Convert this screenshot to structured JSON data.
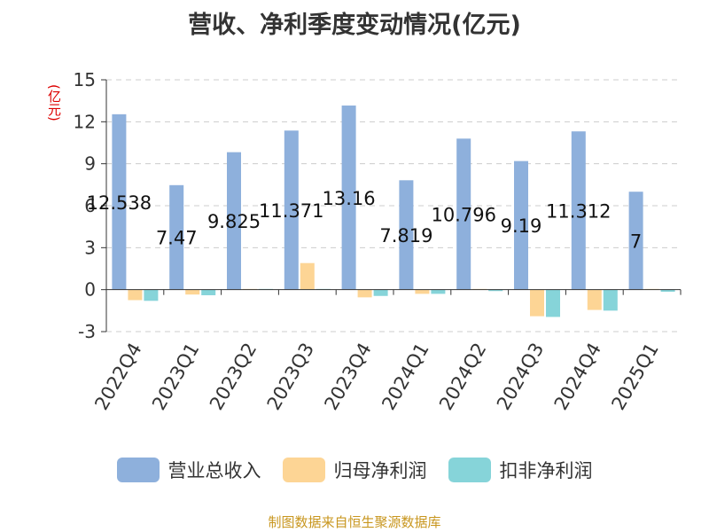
{
  "chart_data": {
    "type": "bar",
    "title": "营收、净利季度变动情况(亿元)",
    "ylabel": "(亿元)",
    "xlabel": "",
    "ylim": [
      -3,
      15
    ],
    "yticks": [
      -3,
      0,
      3,
      6,
      9,
      12,
      15
    ],
    "grid": true,
    "legend_position": "bottom",
    "categories": [
      "2022Q4",
      "2023Q1",
      "2023Q2",
      "2023Q3",
      "2023Q4",
      "2024Q1",
      "2024Q2",
      "2024Q3",
      "2024Q4",
      "2025Q1"
    ],
    "series": [
      {
        "name": "营业总收入",
        "color": "#8eb0dc",
        "values": [
          12.538,
          7.47,
          9.825,
          11.371,
          13.16,
          7.819,
          10.796,
          9.19,
          11.312,
          7
        ]
      },
      {
        "name": "归母净利润",
        "color": "#fdd595",
        "values": [
          -0.75,
          -0.35,
          0.05,
          1.9,
          -0.55,
          -0.3,
          0.05,
          -1.9,
          -1.45,
          0.05
        ]
      },
      {
        "name": "扣非净利润",
        "color": "#86d4d9",
        "values": [
          -0.8,
          -0.4,
          0.05,
          0.05,
          -0.45,
          -0.3,
          -0.1,
          -1.95,
          -1.5,
          -0.15
        ]
      }
    ],
    "data_labels": [
      "12.538",
      "7.47",
      "9.825",
      "11.371",
      "13.16",
      "7.819",
      "10.796",
      "9.19",
      "11.312",
      "7"
    ]
  },
  "source": "制图数据来自恒生聚源数据库"
}
